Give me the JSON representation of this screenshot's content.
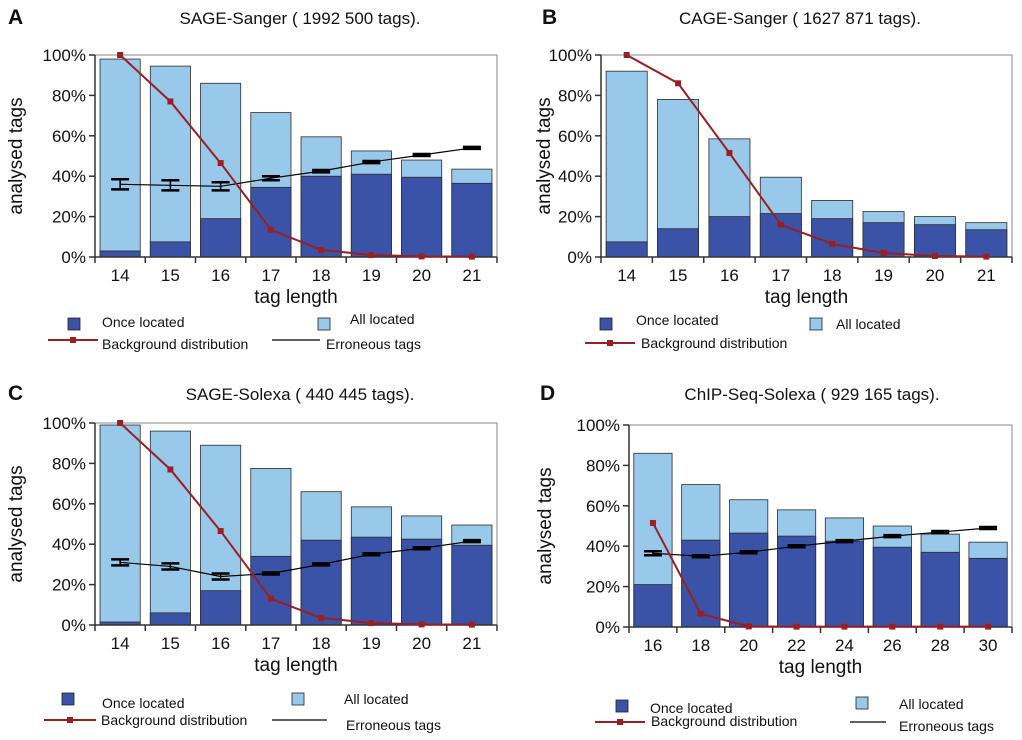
{
  "colors": {
    "once_located": "#3a53a6",
    "all_located": "#99c9ea",
    "background_line": "#9a1f24",
    "erroneous_line": "#000000",
    "axis": "#333333"
  },
  "chart_data": [
    {
      "panel_letter": "A",
      "type": "bar",
      "title": "SAGE-Sanger ( 1992 500 tags).",
      "xlabel": "tag length",
      "ylabel": "analysed tags",
      "categories": [
        "14",
        "15",
        "16",
        "17",
        "18",
        "19",
        "20",
        "21"
      ],
      "y_ticks": [
        "0%",
        "20%",
        "40%",
        "60%",
        "80%",
        "100%"
      ],
      "ylim": [
        0,
        100
      ],
      "series": [
        {
          "name": "Once located",
          "kind": "bar",
          "values": [
            3,
            7.5,
            19,
            34.5,
            40,
            41,
            39.5,
            36.5
          ]
        },
        {
          "name": "All located",
          "kind": "bar",
          "values": [
            98,
            94.5,
            86,
            71.5,
            59.5,
            52.5,
            48,
            43.5
          ]
        },
        {
          "name": "Background distribution",
          "kind": "line",
          "values": [
            100,
            77,
            46.5,
            13.5,
            3.5,
            1,
            0.3,
            0.2
          ]
        },
        {
          "name": "Erroneous tags",
          "kind": "line",
          "values": [
            36,
            35.5,
            35,
            39,
            42.5,
            47,
            50.5,
            54
          ],
          "error": [
            2.5,
            2.5,
            2,
            1,
            0.6,
            0.5,
            0.5,
            0.5
          ]
        }
      ],
      "legend": {
        "layout": "four",
        "once_label": "Once located",
        "all_label": "All located",
        "background_label": "Background distribution",
        "erroneous_label": "Erroneous tags"
      }
    },
    {
      "panel_letter": "B",
      "type": "bar",
      "title": "CAGE-Sanger ( 1627 871 tags).",
      "xlabel": "tag length",
      "ylabel": "analysed tags",
      "categories": [
        "14",
        "15",
        "16",
        "17",
        "18",
        "19",
        "20",
        "21"
      ],
      "y_ticks": [
        "0%",
        "20%",
        "40%",
        "60%",
        "80%",
        "100%"
      ],
      "ylim": [
        0,
        100
      ],
      "series": [
        {
          "name": "Once located",
          "kind": "bar",
          "values": [
            7.5,
            14,
            20,
            21.5,
            19,
            17,
            16,
            13.5
          ]
        },
        {
          "name": "All located",
          "kind": "bar",
          "values": [
            92,
            78,
            58.5,
            39.5,
            28,
            22.5,
            20,
            17
          ]
        },
        {
          "name": "Background distribution",
          "kind": "line",
          "values": [
            100,
            86,
            51.5,
            16,
            6.5,
            2,
            0.5,
            0.2
          ]
        }
      ],
      "legend": {
        "layout": "three",
        "once_label": "Once located",
        "all_label": "All located",
        "background_label": "Background distribution"
      }
    },
    {
      "panel_letter": "C",
      "type": "bar",
      "title": "SAGE-Solexa ( 440 445 tags).",
      "xlabel": "tag length",
      "ylabel": "analysed tags",
      "categories": [
        "14",
        "15",
        "16",
        "17",
        "18",
        "19",
        "20",
        "21"
      ],
      "y_ticks": [
        "0%",
        "20%",
        "40%",
        "60%",
        "80%",
        "100%"
      ],
      "ylim": [
        0,
        100
      ],
      "series": [
        {
          "name": "Once located",
          "kind": "bar",
          "values": [
            1.5,
            6,
            17,
            34,
            42,
            43.5,
            42.5,
            39.5
          ]
        },
        {
          "name": "All located",
          "kind": "bar",
          "values": [
            99,
            96,
            89,
            77.5,
            66,
            58.5,
            54,
            49.5
          ]
        },
        {
          "name": "Background distribution",
          "kind": "line",
          "values": [
            100,
            77,
            46.5,
            13,
            3.5,
            1,
            0.3,
            0.2
          ]
        },
        {
          "name": "Erroneous tags",
          "kind": "line",
          "values": [
            31,
            29,
            24,
            25.5,
            30,
            35,
            38,
            41.5
          ],
          "error": [
            1.5,
            1.5,
            1.5,
            0.5,
            0.5,
            0.5,
            0.5,
            0.5
          ]
        }
      ],
      "legend": {
        "layout": "four",
        "once_label": "Once located",
        "all_label": "All located",
        "background_label": "Background distribution",
        "erroneous_label": "Erroneous tags"
      }
    },
    {
      "panel_letter": "D",
      "type": "bar",
      "title": "ChIP-Seq-Solexa ( 929 165 tags).",
      "xlabel": "tag length",
      "ylabel": "analysed tags",
      "categories": [
        "16",
        "18",
        "20",
        "22",
        "24",
        "26",
        "28",
        "30"
      ],
      "y_ticks": [
        "0%",
        "20%",
        "40%",
        "60%",
        "80%",
        "100%"
      ],
      "ylim": [
        0,
        100
      ],
      "series": [
        {
          "name": "Once located",
          "kind": "bar",
          "values": [
            21,
            43,
            46.5,
            45,
            42.5,
            39.5,
            37,
            34
          ]
        },
        {
          "name": "All located",
          "kind": "bar",
          "values": [
            86,
            70.5,
            63,
            58,
            54,
            50,
            46,
            42
          ]
        },
        {
          "name": "Background distribution",
          "kind": "line",
          "values": [
            51.5,
            6.5,
            0.3,
            0.2,
            0.2,
            0.2,
            0.2,
            0.2
          ]
        },
        {
          "name": "Erroneous tags",
          "kind": "line",
          "values": [
            36.5,
            35,
            37,
            40,
            42.5,
            45,
            47,
            49
          ],
          "error": [
            1,
            0.5,
            0.5,
            0.5,
            0.5,
            0.5,
            0.5,
            0.5
          ]
        }
      ],
      "legend": {
        "layout": "four",
        "once_label": "Once located",
        "all_label": "All located",
        "background_label": "Background distribution",
        "erroneous_label": "Erroneous tags"
      }
    }
  ]
}
